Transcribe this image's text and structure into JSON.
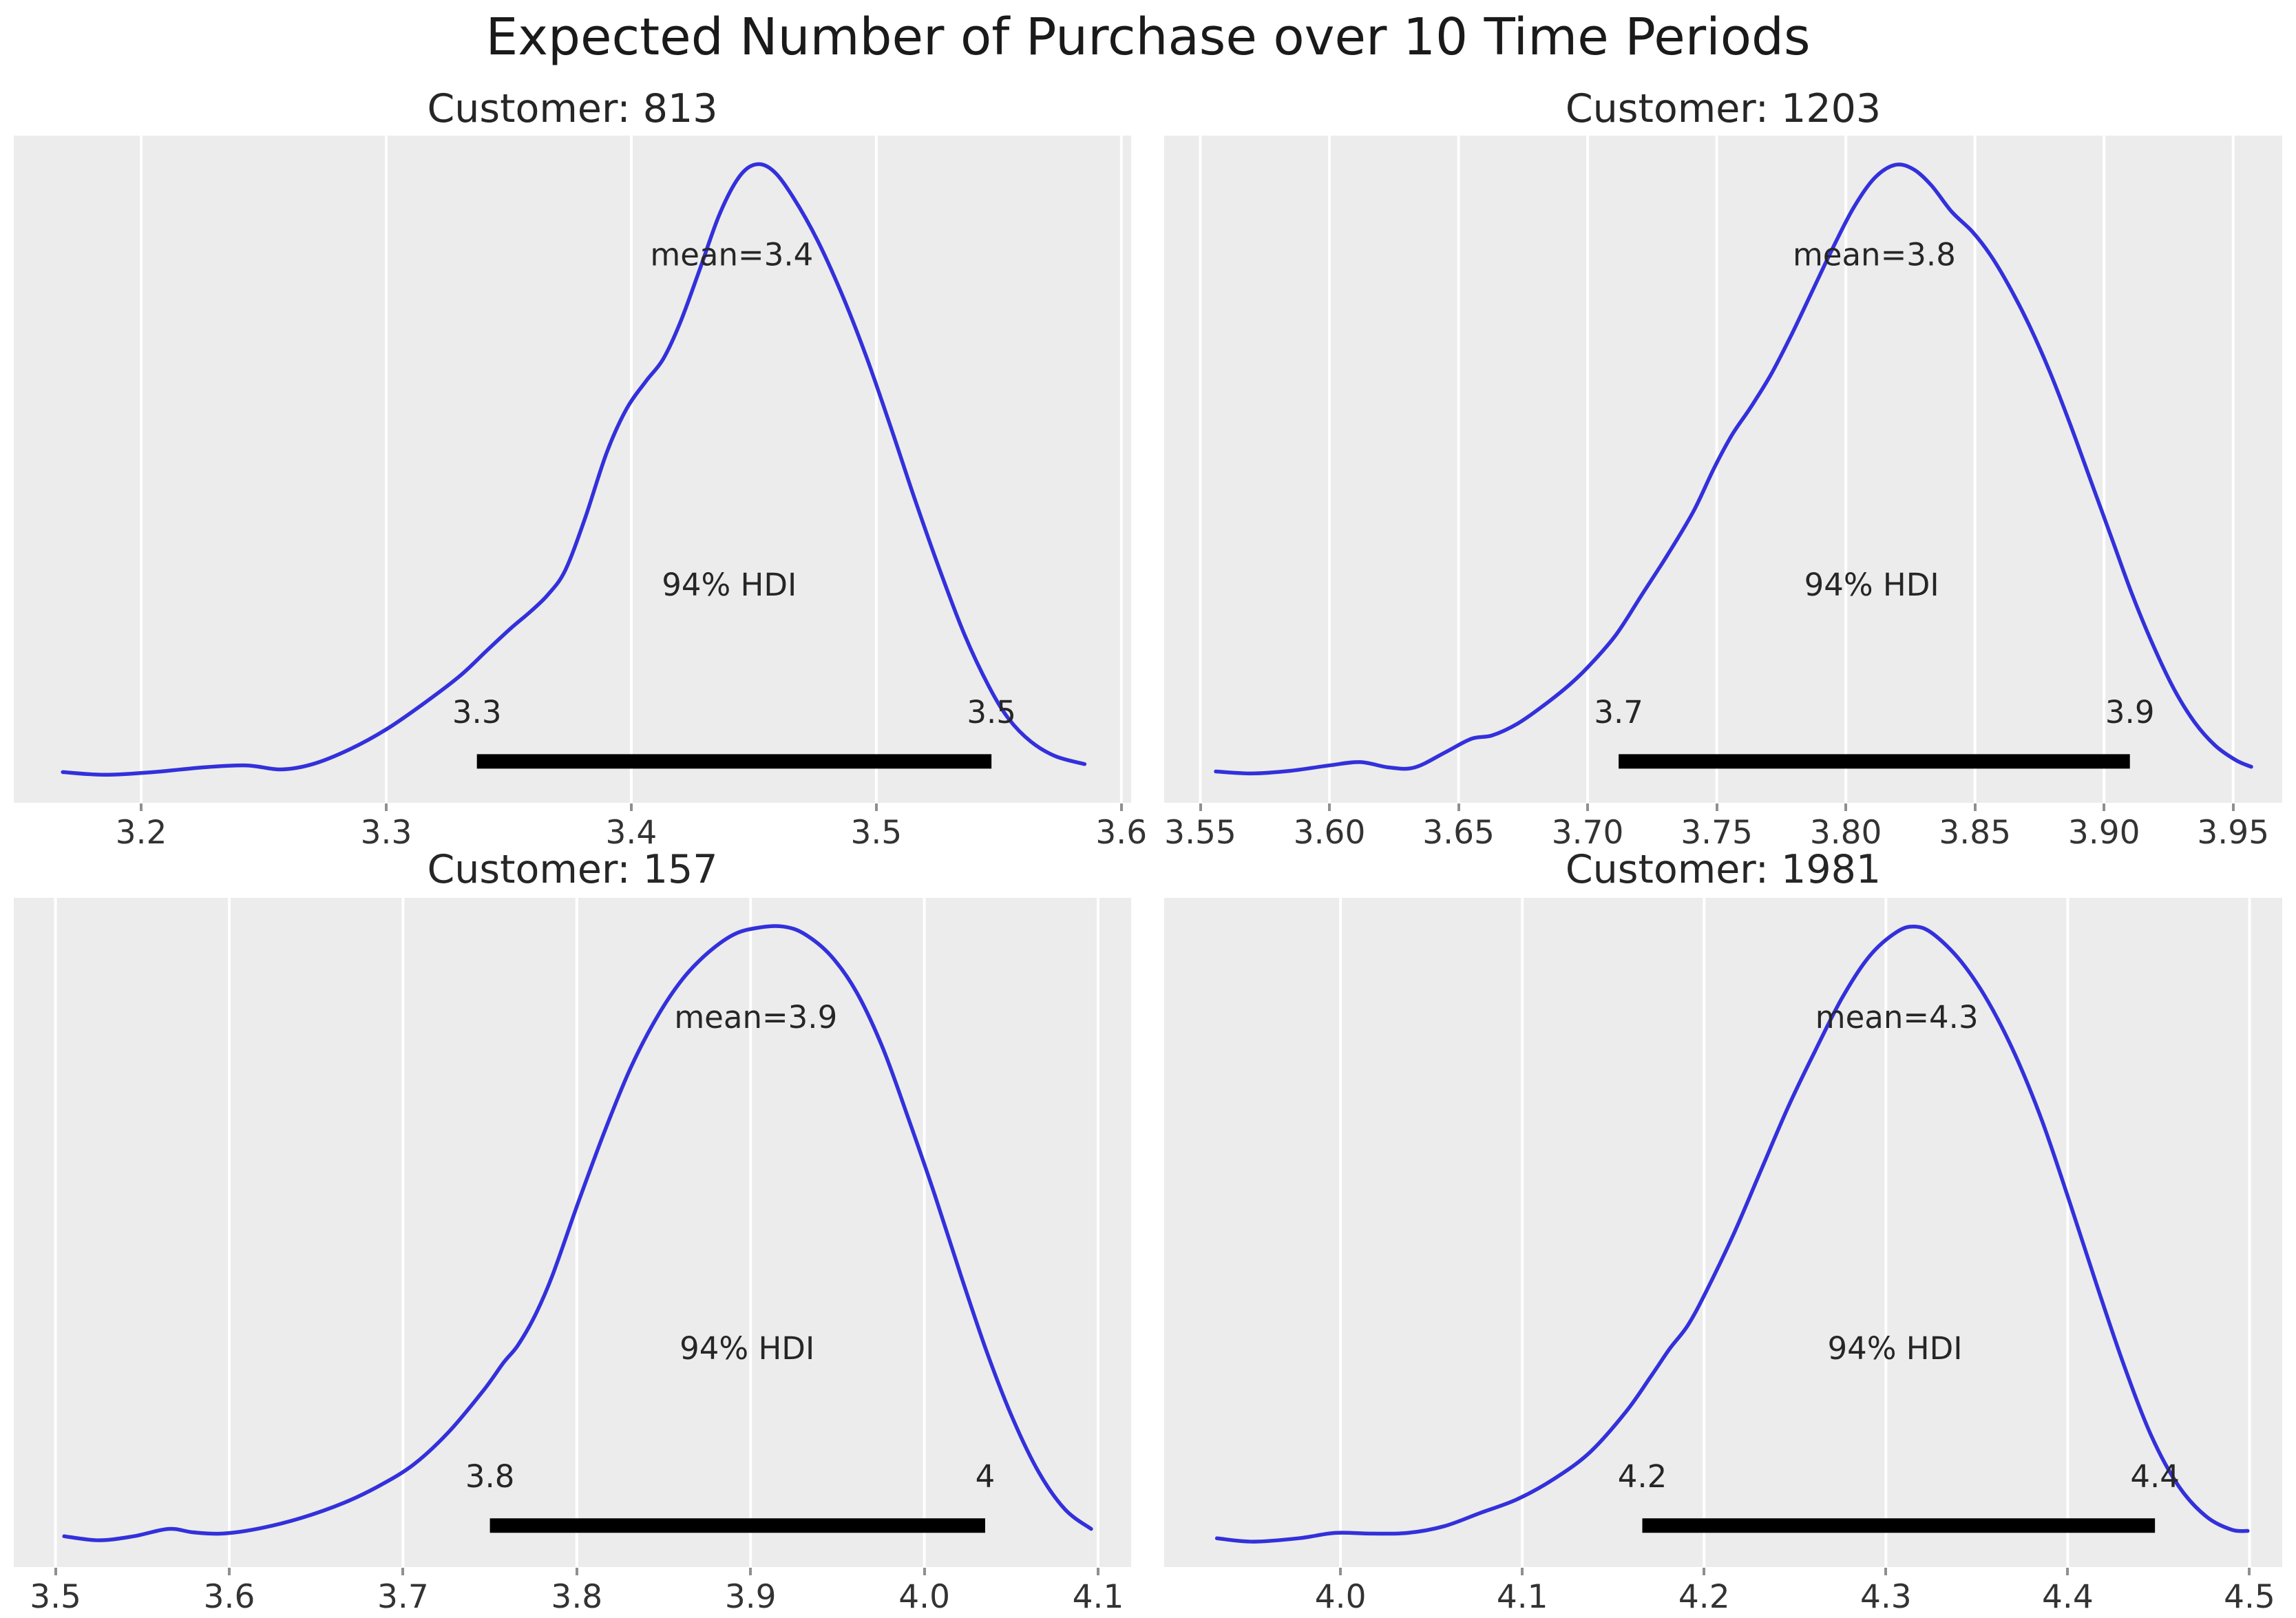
{
  "figure": {
    "title": "Expected Number of Purchase over 10 Time Periods",
    "background": "#ffffff",
    "panel_background": "#ececec",
    "grid_color": "#ffffff",
    "curve_color": "#3330db",
    "hdi_bar_color": "#000000",
    "text_color": "#262626",
    "tick_color": "#8f8f8f"
  },
  "chart_data": [
    {
      "type": "line",
      "title": "Customer: 813",
      "mean": 3.4,
      "mean_label": "mean=3.4",
      "mean_label_x": 3.441,
      "hdi_probability": "94%",
      "hdi_label": "94% HDI",
      "hdi_label_x": 3.44,
      "hdi_interval": [
        3.3,
        3.5
      ],
      "hdi_end_labels": [
        "3.3",
        "3.5"
      ],
      "hdi_bar": [
        3.337,
        3.547
      ],
      "xlim": [
        3.148,
        3.604
      ],
      "xticks": [
        3.2,
        3.3,
        3.4,
        3.5,
        3.6
      ],
      "xtick_labels": [
        "3.2",
        "3.3",
        "3.4",
        "3.5",
        "3.6"
      ],
      "grid": true,
      "legend": false,
      "curve": [
        [
          3.168,
          0.046
        ],
        [
          3.185,
          0.042
        ],
        [
          3.205,
          0.046
        ],
        [
          3.225,
          0.053
        ],
        [
          3.243,
          0.056
        ],
        [
          3.257,
          0.05
        ],
        [
          3.27,
          0.058
        ],
        [
          3.285,
          0.08
        ],
        [
          3.3,
          0.11
        ],
        [
          3.315,
          0.148
        ],
        [
          3.33,
          0.19
        ],
        [
          3.341,
          0.228
        ],
        [
          3.351,
          0.262
        ],
        [
          3.359,
          0.287
        ],
        [
          3.366,
          0.312
        ],
        [
          3.373,
          0.348
        ],
        [
          3.381,
          0.425
        ],
        [
          3.39,
          0.525
        ],
        [
          3.398,
          0.59
        ],
        [
          3.406,
          0.632
        ],
        [
          3.413,
          0.665
        ],
        [
          3.42,
          0.72
        ],
        [
          3.428,
          0.8
        ],
        [
          3.436,
          0.882
        ],
        [
          3.444,
          0.938
        ],
        [
          3.451,
          0.957
        ],
        [
          3.458,
          0.947
        ],
        [
          3.466,
          0.908
        ],
        [
          3.476,
          0.843
        ],
        [
          3.486,
          0.762
        ],
        [
          3.496,
          0.668
        ],
        [
          3.506,
          0.562
        ],
        [
          3.516,
          0.452
        ],
        [
          3.526,
          0.348
        ],
        [
          3.536,
          0.252
        ],
        [
          3.546,
          0.174
        ],
        [
          3.554,
          0.126
        ],
        [
          3.563,
          0.092
        ],
        [
          3.573,
          0.07
        ],
        [
          3.585,
          0.058
        ]
      ]
    },
    {
      "type": "line",
      "title": "Customer: 1203",
      "mean": 3.8,
      "mean_label": "mean=3.8",
      "mean_label_x": 3.811,
      "hdi_probability": "94%",
      "hdi_label": "94% HDI",
      "hdi_label_x": 3.81,
      "hdi_interval": [
        3.7,
        3.9
      ],
      "hdi_end_labels": [
        "3.7",
        "3.9"
      ],
      "hdi_bar": [
        3.712,
        3.91
      ],
      "xlim": [
        3.536,
        3.969
      ],
      "xticks": [
        3.55,
        3.6,
        3.65,
        3.7,
        3.75,
        3.8,
        3.85,
        3.9,
        3.95
      ],
      "xtick_labels": [
        "3.55",
        "3.60",
        "3.65",
        "3.70",
        "3.75",
        "3.80",
        "3.85",
        "3.90",
        "3.95"
      ],
      "grid": true,
      "legend": false,
      "curve": [
        [
          3.556,
          0.047
        ],
        [
          3.57,
          0.044
        ],
        [
          3.585,
          0.048
        ],
        [
          3.6,
          0.056
        ],
        [
          3.612,
          0.061
        ],
        [
          3.623,
          0.053
        ],
        [
          3.633,
          0.053
        ],
        [
          3.645,
          0.076
        ],
        [
          3.655,
          0.096
        ],
        [
          3.663,
          0.101
        ],
        [
          3.673,
          0.119
        ],
        [
          3.683,
          0.146
        ],
        [
          3.693,
          0.177
        ],
        [
          3.701,
          0.207
        ],
        [
          3.711,
          0.252
        ],
        [
          3.721,
          0.312
        ],
        [
          3.731,
          0.372
        ],
        [
          3.741,
          0.437
        ],
        [
          3.749,
          0.502
        ],
        [
          3.756,
          0.552
        ],
        [
          3.763,
          0.592
        ],
        [
          3.771,
          0.642
        ],
        [
          3.779,
          0.702
        ],
        [
          3.787,
          0.767
        ],
        [
          3.795,
          0.832
        ],
        [
          3.803,
          0.892
        ],
        [
          3.811,
          0.936
        ],
        [
          3.819,
          0.956
        ],
        [
          3.826,
          0.95
        ],
        [
          3.833,
          0.926
        ],
        [
          3.841,
          0.886
        ],
        [
          3.849,
          0.856
        ],
        [
          3.856,
          0.821
        ],
        [
          3.863,
          0.776
        ],
        [
          3.871,
          0.716
        ],
        [
          3.879,
          0.646
        ],
        [
          3.887,
          0.566
        ],
        [
          3.895,
          0.481
        ],
        [
          3.903,
          0.396
        ],
        [
          3.911,
          0.311
        ],
        [
          3.919,
          0.236
        ],
        [
          3.927,
          0.171
        ],
        [
          3.935,
          0.121
        ],
        [
          3.943,
          0.086
        ],
        [
          3.951,
          0.064
        ],
        [
          3.957,
          0.054
        ]
      ]
    },
    {
      "type": "line",
      "title": "Customer: 157",
      "mean": 3.9,
      "mean_label": "mean=3.9",
      "mean_label_x": 3.903,
      "hdi_probability": "94%",
      "hdi_label": "94% HDI",
      "hdi_label_x": 3.898,
      "hdi_interval": [
        3.8,
        4.0
      ],
      "hdi_end_labels": [
        "3.8",
        "4"
      ],
      "hdi_bar": [
        3.75,
        4.035
      ],
      "xlim": [
        3.476,
        4.119
      ],
      "xticks": [
        3.5,
        3.6,
        3.7,
        3.8,
        3.9,
        4.0,
        4.1
      ],
      "xtick_labels": [
        "3.5",
        "3.6",
        "3.7",
        "3.8",
        "3.9",
        "4.0",
        "4.1"
      ],
      "grid": true,
      "legend": false,
      "curve": [
        [
          3.505,
          0.046
        ],
        [
          3.525,
          0.04
        ],
        [
          3.545,
          0.046
        ],
        [
          3.565,
          0.057
        ],
        [
          3.579,
          0.052
        ],
        [
          3.596,
          0.05
        ],
        [
          3.616,
          0.057
        ],
        [
          3.641,
          0.073
        ],
        [
          3.666,
          0.096
        ],
        [
          3.686,
          0.121
        ],
        [
          3.706,
          0.153
        ],
        [
          3.726,
          0.201
        ],
        [
          3.746,
          0.263
        ],
        [
          3.758,
          0.306
        ],
        [
          3.766,
          0.331
        ],
        [
          3.776,
          0.376
        ],
        [
          3.786,
          0.436
        ],
        [
          3.801,
          0.546
        ],
        [
          3.816,
          0.651
        ],
        [
          3.831,
          0.746
        ],
        [
          3.846,
          0.821
        ],
        [
          3.861,
          0.879
        ],
        [
          3.876,
          0.919
        ],
        [
          3.891,
          0.946
        ],
        [
          3.906,
          0.956
        ],
        [
          3.919,
          0.957
        ],
        [
          3.931,
          0.946
        ],
        [
          3.946,
          0.914
        ],
        [
          3.961,
          0.859
        ],
        [
          3.976,
          0.776
        ],
        [
          3.991,
          0.669
        ],
        [
          4.006,
          0.556
        ],
        [
          4.021,
          0.436
        ],
        [
          4.036,
          0.321
        ],
        [
          4.051,
          0.221
        ],
        [
          4.066,
          0.141
        ],
        [
          4.081,
          0.086
        ],
        [
          4.096,
          0.057
        ]
      ]
    },
    {
      "type": "line",
      "title": "Customer: 1981",
      "mean": 4.3,
      "mean_label": "mean=4.3",
      "mean_label_x": 4.306,
      "hdi_probability": "94%",
      "hdi_label": "94% HDI",
      "hdi_label_x": 4.305,
      "hdi_interval": [
        4.2,
        4.4
      ],
      "hdi_end_labels": [
        "4.2",
        "4.4"
      ],
      "hdi_bar": [
        4.166,
        4.448
      ],
      "xlim": [
        3.903,
        4.518
      ],
      "xticks": [
        4.0,
        4.1,
        4.2,
        4.3,
        4.4,
        4.5
      ],
      "xtick_labels": [
        "4.0",
        "4.1",
        "4.2",
        "4.3",
        "4.4",
        "4.5"
      ],
      "grid": true,
      "legend": false,
      "curve": [
        [
          3.932,
          0.043
        ],
        [
          3.952,
          0.038
        ],
        [
          3.977,
          0.043
        ],
        [
          3.997,
          0.051
        ],
        [
          4.017,
          0.05
        ],
        [
          4.037,
          0.051
        ],
        [
          4.057,
          0.061
        ],
        [
          4.077,
          0.081
        ],
        [
          4.097,
          0.101
        ],
        [
          4.117,
          0.131
        ],
        [
          4.137,
          0.171
        ],
        [
          4.157,
          0.232
        ],
        [
          4.171,
          0.286
        ],
        [
          4.181,
          0.326
        ],
        [
          4.191,
          0.361
        ],
        [
          4.201,
          0.411
        ],
        [
          4.216,
          0.496
        ],
        [
          4.231,
          0.591
        ],
        [
          4.246,
          0.686
        ],
        [
          4.261,
          0.771
        ],
        [
          4.276,
          0.851
        ],
        [
          4.291,
          0.913
        ],
        [
          4.306,
          0.949
        ],
        [
          4.316,
          0.957
        ],
        [
          4.326,
          0.946
        ],
        [
          4.341,
          0.906
        ],
        [
          4.356,
          0.846
        ],
        [
          4.371,
          0.766
        ],
        [
          4.386,
          0.666
        ],
        [
          4.401,
          0.546
        ],
        [
          4.416,
          0.421
        ],
        [
          4.431,
          0.301
        ],
        [
          4.446,
          0.196
        ],
        [
          4.461,
          0.121
        ],
        [
          4.476,
          0.076
        ],
        [
          4.49,
          0.056
        ],
        [
          4.499,
          0.054
        ]
      ]
    }
  ]
}
